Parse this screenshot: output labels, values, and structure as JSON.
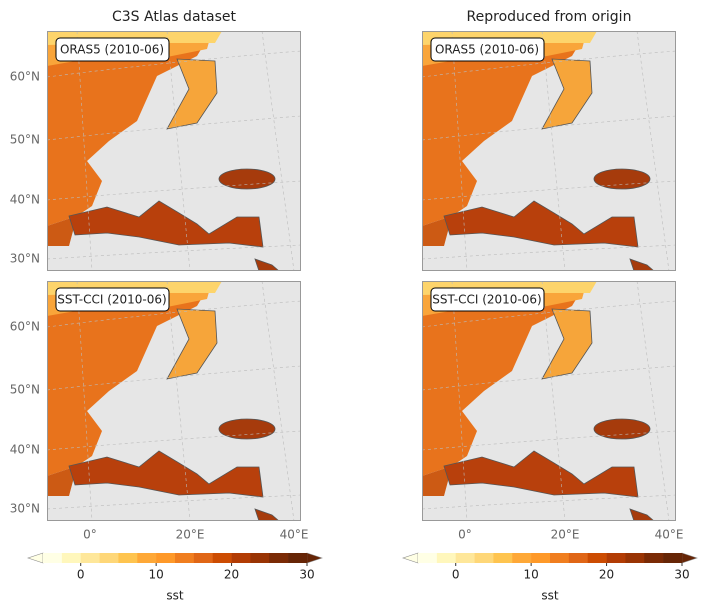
{
  "columns": [
    {
      "title": "C3S Atlas dataset"
    },
    {
      "title": "Reproduced from origin"
    }
  ],
  "rows": [
    {
      "label": "ORAS5 (2010-06)"
    },
    {
      "label": "SST-CCI (2010-06)"
    }
  ],
  "lat_ticks": [
    "60°N",
    "50°N",
    "40°N",
    "30°N"
  ],
  "lon_ticks": [
    "0°",
    "20°E",
    "40°E"
  ],
  "colorbar": {
    "label": "sst",
    "lim": [
      -5,
      30
    ],
    "ticks": [
      0,
      10,
      20,
      30
    ],
    "colors": [
      "#ffffe5",
      "#fff7bc",
      "#fee79a",
      "#fed778",
      "#fec44f",
      "#fea837",
      "#fe9929",
      "#f07e1f",
      "#e06616",
      "#cc4c02",
      "#b23c04",
      "#993404",
      "#7a2a05",
      "#662506"
    ]
  }
}
